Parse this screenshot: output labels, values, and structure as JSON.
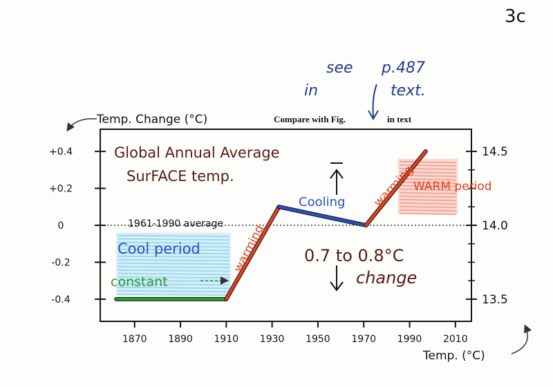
{
  "page_label": "3c",
  "handwritten_note": {
    "line1": "see",
    "page_ref": "p.487",
    "line2": "in",
    "line2b": "text."
  },
  "printed_caption": {
    "part1": "Compare with Fig.",
    "part2": "in text"
  },
  "chart_data": {
    "type": "line",
    "title": "Global Annual Average",
    "subtitle": "SurFACE temp.",
    "ylabel_left": "Temp. Change (°C)",
    "ylabel_right": "Temp. (°C)",
    "x_ticks": [
      1870,
      1890,
      1910,
      1930,
      1950,
      1970,
      1990,
      2010
    ],
    "xlim": [
      1855,
      2017
    ],
    "y_left_ticks": [
      {
        "value": 0.4,
        "label": "+0.4"
      },
      {
        "value": 0.2,
        "label": "+0.2"
      },
      {
        "value": 0.0,
        "label": "0"
      },
      {
        "value": -0.2,
        "label": "-0.2"
      },
      {
        "value": -0.4,
        "label": "-0.4"
      }
    ],
    "ylim_left": [
      -0.52,
      0.52
    ],
    "y_right_ticks": [
      {
        "value": 14.5,
        "label": "14.5"
      },
      {
        "value": 14.0,
        "label": "14.0"
      },
      {
        "value": 13.5,
        "label": "13.5"
      }
    ],
    "reference_line": {
      "value": 0.0,
      "label": "1961-1990 average"
    },
    "segments": [
      {
        "label": "constant",
        "color": "#2f9a2f",
        "points": [
          [
            1862,
            -0.4
          ],
          [
            1910,
            -0.4
          ]
        ]
      },
      {
        "label": "warming",
        "color": "#e04020",
        "points": [
          [
            1910,
            -0.4
          ],
          [
            1933,
            0.1
          ]
        ]
      },
      {
        "label": "Cooling",
        "color": "#2a4fbf",
        "points": [
          [
            1933,
            0.1
          ],
          [
            1971,
            0.0
          ]
        ]
      },
      {
        "label": "warming",
        "color": "#e04020",
        "points": [
          [
            1971,
            0.0
          ],
          [
            1997,
            0.4
          ]
        ]
      }
    ],
    "regions": [
      {
        "label": "Cool period",
        "color": "#8fd3f0",
        "x": [
          1862,
          1912
        ],
        "y": [
          -0.38,
          -0.04
        ]
      },
      {
        "label": "WARM period",
        "color": "#f29a8a",
        "x": [
          1985,
          2011
        ],
        "y": [
          0.06,
          0.36
        ]
      }
    ],
    "annotation_change": "0.7 to 0.8°C",
    "annotation_change2": "change",
    "colors": {
      "green": "#2f9a2f",
      "red": "#e04020",
      "blue": "#2a4fbf",
      "maroon": "#5a1a14",
      "navy": "#1e3c8c"
    }
  }
}
